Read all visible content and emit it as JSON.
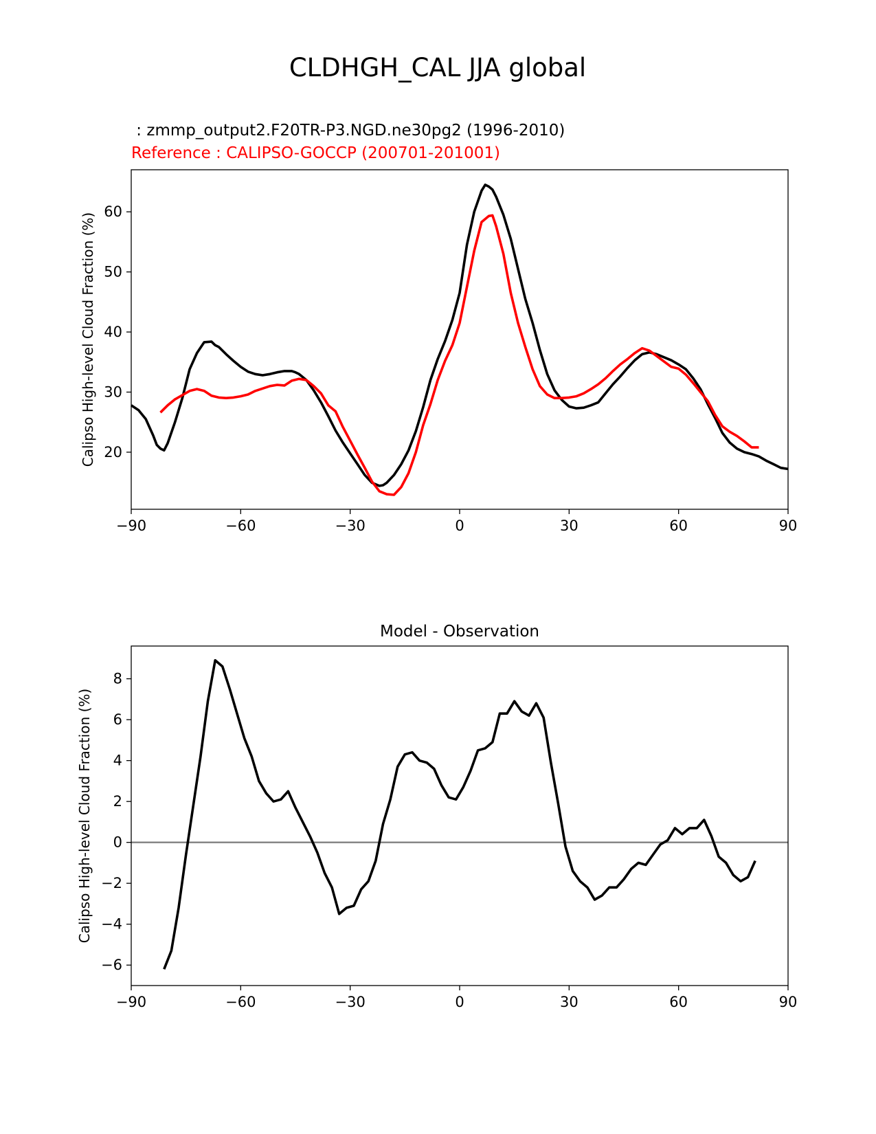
{
  "figure": {
    "suptitle": "CLDHGH_CAL JJA global",
    "colors": {
      "model": "#000000",
      "reference": "#ff0000",
      "zero_line": "#808080",
      "axes": "#000000"
    }
  },
  "chart_data": [
    {
      "type": "line",
      "title_left_model": " : zmmp_output2.F20TR-P3.NGD.ne30pg2 (1996-2010)",
      "title_left_reference": "Reference : CALIPSO-GOCCP (200701-201001)",
      "xlabel": "",
      "ylabel": "Calipso High-level Cloud Fraction (%)",
      "xlim": [
        -90,
        90
      ],
      "ylim": [
        10.5,
        67
      ],
      "xticks": [
        -90,
        -60,
        -30,
        0,
        30,
        60,
        90
      ],
      "xtick_labels": [
        "−90",
        "−60",
        "−30",
        "0",
        "30",
        "60",
        "90"
      ],
      "yticks": [
        20,
        30,
        40,
        50,
        60
      ],
      "ytick_labels": [
        "20",
        "30",
        "40",
        "50",
        "60"
      ],
      "series": [
        {
          "name": "model",
          "x": [
            -90,
            -88,
            -86,
            -84,
            -83,
            -82,
            -81,
            -80,
            -78,
            -76,
            -74,
            -72,
            -70,
            -68,
            -67,
            -66,
            -64,
            -62,
            -60,
            -58,
            -56,
            -54,
            -52,
            -50,
            -48,
            -46,
            -45,
            -44,
            -42,
            -40,
            -38,
            -36,
            -34,
            -32,
            -30,
            -28,
            -26,
            -24,
            -22,
            -21,
            -20,
            -18,
            -16,
            -14,
            -12,
            -10,
            -8,
            -6,
            -4,
            -2,
            0,
            2,
            4,
            6,
            7,
            8,
            9,
            10,
            12,
            14,
            16,
            18,
            20,
            22,
            24,
            26,
            28,
            30,
            32,
            34,
            36,
            38,
            40,
            42,
            44,
            46,
            48,
            50,
            52,
            54,
            56,
            58,
            60,
            62,
            64,
            66,
            68,
            70,
            72,
            74,
            76,
            78,
            80,
            82,
            84,
            86,
            88,
            90
          ],
          "y": [
            27.8,
            27,
            25.5,
            22.8,
            21.2,
            20.6,
            20.3,
            21.5,
            25,
            29,
            33.8,
            36.5,
            38.3,
            38.4,
            37.8,
            37.5,
            36.3,
            35.2,
            34.2,
            33.4,
            33,
            32.8,
            33,
            33.3,
            33.5,
            33.5,
            33.3,
            33,
            32,
            30.3,
            28.3,
            26,
            23.6,
            21.6,
            19.8,
            18,
            16.2,
            14.9,
            14.4,
            14.5,
            14.9,
            16.2,
            18,
            20.3,
            23.5,
            27.5,
            32,
            35.5,
            38.5,
            42,
            46.5,
            54.5,
            60,
            63.5,
            64.5,
            64.2,
            63.7,
            62.5,
            59.5,
            55.5,
            50.5,
            45.5,
            41.5,
            37,
            33,
            30.3,
            28.7,
            27.6,
            27.3,
            27.4,
            27.8,
            28.3,
            29.8,
            31.3,
            32.6,
            34,
            35.3,
            36.3,
            36.6,
            36.3,
            35.8,
            35.3,
            34.6,
            33.8,
            32.3,
            30.5,
            28,
            25.7,
            23.2,
            21.6,
            20.6,
            20,
            19.7,
            19.3,
            18.6,
            18,
            17.4,
            17.2
          ]
        },
        {
          "name": "reference",
          "x": [
            -82,
            -80,
            -78,
            -76,
            -74,
            -72,
            -70,
            -68,
            -66,
            -64,
            -62,
            -60,
            -58,
            -56,
            -54,
            -52,
            -50,
            -48,
            -46,
            -44,
            -42,
            -40,
            -38,
            -36,
            -34,
            -32,
            -30,
            -28,
            -26,
            -24,
            -22,
            -20,
            -18,
            -16,
            -14,
            -12,
            -10,
            -8,
            -6,
            -4,
            -2,
            0,
            2,
            4,
            6,
            8,
            9,
            10,
            12,
            14,
            16,
            18,
            20,
            22,
            24,
            26,
            28,
            30,
            32,
            34,
            36,
            38,
            40,
            42,
            44,
            46,
            48,
            50,
            52,
            54,
            56,
            58,
            60,
            62,
            64,
            66,
            68,
            70,
            72,
            74,
            76,
            78,
            80,
            82
          ],
          "y": [
            26.6,
            27.8,
            28.8,
            29.5,
            30.2,
            30.5,
            30.2,
            29.4,
            29.1,
            29,
            29.1,
            29.3,
            29.6,
            30.2,
            30.6,
            31,
            31.2,
            31.1,
            31.9,
            32.2,
            32,
            31,
            29.8,
            27.8,
            26.8,
            24.2,
            21.9,
            19.6,
            17.4,
            15.1,
            13.5,
            13,
            12.9,
            14.2,
            16.5,
            20,
            24.5,
            28,
            32,
            35.2,
            37.8,
            41.5,
            47.5,
            53.5,
            58.3,
            59.3,
            59.4,
            57.6,
            53,
            46.5,
            41.5,
            37.5,
            33.8,
            31,
            29.6,
            29,
            29,
            29.1,
            29.3,
            29.8,
            30.5,
            31.3,
            32.3,
            33.5,
            34.6,
            35.5,
            36.5,
            37.3,
            36.9,
            36,
            35.1,
            34.2,
            33.9,
            32.9,
            31.5,
            30,
            28.5,
            26.2,
            24.3,
            23.4,
            22.7,
            21.8,
            20.8,
            20.8
          ]
        }
      ]
    },
    {
      "type": "line",
      "title": "Model - Observation",
      "xlabel": "",
      "ylabel": "Calipso High-level Cloud Fraction (%)",
      "xlim": [
        -90,
        90
      ],
      "ylim": [
        -7,
        9.6
      ],
      "xticks": [
        -90,
        -60,
        -30,
        0,
        30,
        60,
        90
      ],
      "xtick_labels": [
        "−90",
        "−60",
        "−30",
        "0",
        "30",
        "60",
        "90"
      ],
      "yticks": [
        -6,
        -4,
        -2,
        0,
        2,
        4,
        6,
        8
      ],
      "ytick_labels": [
        "−6",
        "−4",
        "−2",
        "0",
        "2",
        "4",
        "6",
        "8"
      ],
      "zero_line": 0,
      "series": [
        {
          "name": "difference",
          "x": [
            -81,
            -79,
            -77,
            -75,
            -73,
            -71,
            -69,
            -67,
            -65,
            -63,
            -61,
            -59,
            -57,
            -55,
            -53,
            -51,
            -49,
            -47,
            -45,
            -43,
            -41,
            -39,
            -37,
            -35,
            -33,
            -31,
            -29,
            -27,
            -25,
            -23,
            -21,
            -19,
            -17,
            -15,
            -13,
            -11,
            -9,
            -7,
            -5,
            -3,
            -1,
            1,
            3,
            5,
            7,
            9,
            11,
            13,
            15,
            17,
            19,
            21,
            23,
            25,
            27,
            29,
            31,
            33,
            35,
            37,
            39,
            41,
            43,
            45,
            47,
            49,
            51,
            53,
            55,
            57,
            59,
            61,
            63,
            65,
            67,
            69,
            71,
            73,
            75,
            77,
            79,
            81
          ],
          "y": [
            -6.2,
            -5.3,
            -3.2,
            -0.6,
            1.8,
            4.2,
            6.9,
            8.9,
            8.6,
            7.5,
            6.3,
            5.1,
            4.2,
            3.0,
            2.4,
            2.0,
            2.1,
            2.5,
            1.7,
            1.0,
            0.3,
            -0.5,
            -1.5,
            -2.2,
            -3.5,
            -3.2,
            -3.1,
            -2.3,
            -1.9,
            -0.9,
            0.9,
            2.1,
            3.7,
            4.3,
            4.4,
            4.0,
            3.9,
            3.6,
            2.8,
            2.2,
            2.1,
            2.7,
            3.5,
            4.5,
            4.6,
            4.9,
            6.3,
            6.3,
            6.9,
            6.4,
            6.2,
            6.8,
            6.1,
            3.9,
            1.9,
            -0.2,
            -1.4,
            -1.9,
            -2.2,
            -2.8,
            -2.6,
            -2.2,
            -2.2,
            -1.8,
            -1.3,
            -1.0,
            -1.1,
            -0.6,
            -0.1,
            0.1,
            0.7,
            0.4,
            0.7,
            0.7,
            1.1,
            0.3,
            -0.7,
            -1.0,
            -1.6,
            -1.9,
            -1.7,
            -0.9
          ]
        }
      ]
    }
  ]
}
